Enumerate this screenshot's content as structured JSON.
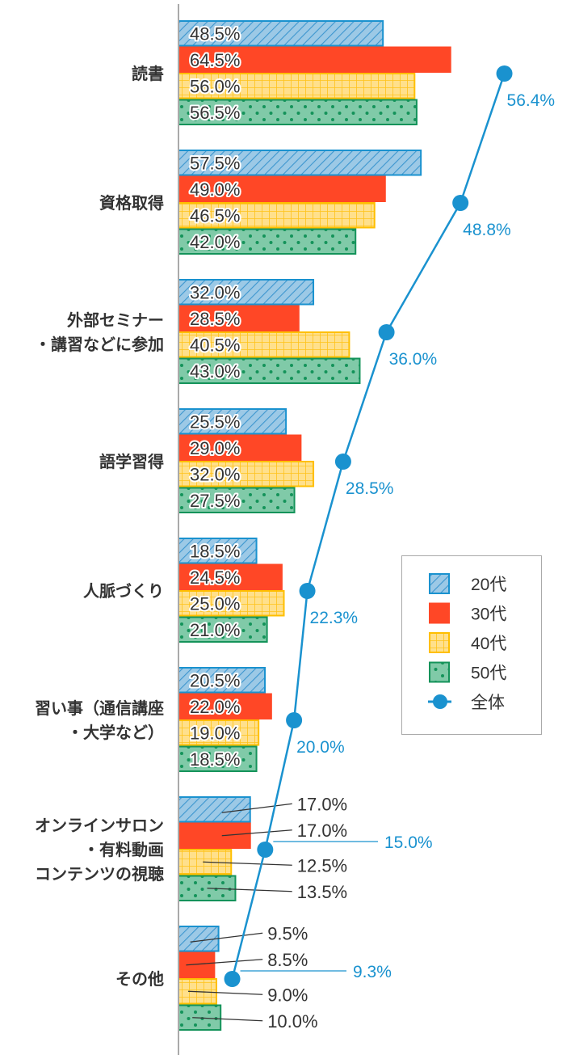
{
  "chart_data": {
    "type": "bar",
    "orientation": "horizontal",
    "categories": [
      [
        "読書"
      ],
      [
        "資格取得"
      ],
      [
        "外部セミナー",
        "・講習などに参加"
      ],
      [
        "語学習得"
      ],
      [
        "人脈づくり"
      ],
      [
        "習い事（通信講座",
        "・大学など）"
      ],
      [
        "オンラインサロン",
        "・有料動画",
        "コンテンツの視聴"
      ],
      [
        "その他"
      ]
    ],
    "series": [
      {
        "name": "20代",
        "type": "bar",
        "pattern": "hatched",
        "color": "#9cc9e6",
        "stroke": "#1a92cf",
        "values": [
          48.5,
          57.5,
          32.0,
          25.5,
          18.5,
          20.5,
          17.0,
          9.5
        ]
      },
      {
        "name": "30代",
        "type": "bar",
        "pattern": "solid",
        "color": "#ff4726",
        "stroke": "#ff4726",
        "values": [
          64.5,
          49.0,
          28.5,
          29.0,
          24.5,
          22.0,
          17.0,
          8.5
        ]
      },
      {
        "name": "40代",
        "type": "bar",
        "pattern": "grid",
        "color": "#ffe08c",
        "stroke": "#ffbf00",
        "values": [
          56.0,
          46.5,
          40.5,
          32.0,
          25.0,
          19.0,
          12.5,
          9.0
        ]
      },
      {
        "name": "50代",
        "type": "bar",
        "pattern": "dots",
        "color": "#80caa8",
        "stroke": "#14935a",
        "values": [
          56.5,
          42.0,
          43.0,
          27.5,
          21.0,
          18.5,
          13.5,
          10.0
        ]
      },
      {
        "name": "全体",
        "type": "line",
        "color": "#1a92cf",
        "values": [
          56.4,
          48.8,
          36.0,
          28.5,
          22.3,
          20.0,
          15.0,
          9.3
        ]
      }
    ],
    "value_format": "%",
    "decimals": 1,
    "legend": "right",
    "grid": false
  }
}
